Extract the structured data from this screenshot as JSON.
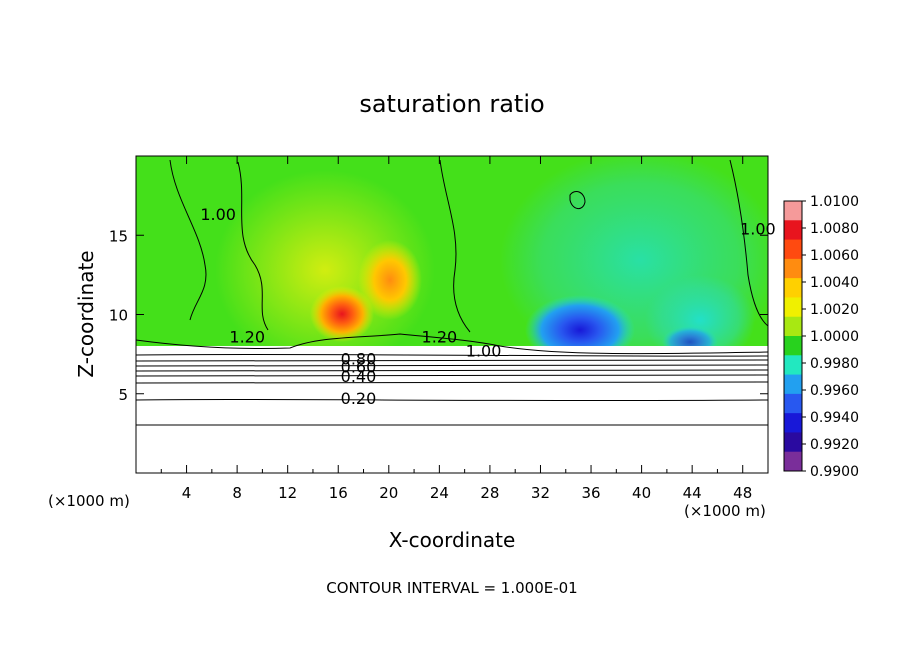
{
  "chart_data": {
    "type": "heatmap",
    "title": "saturation ratio",
    "xlabel": "X-coordinate",
    "ylabel": "Z-coordinate",
    "x_unit_left": "(×1000 m)",
    "x_unit_right": "(×1000 m)",
    "footer": "CONTOUR INTERVAL = 1.000E-01",
    "xlim": [
      0,
      50
    ],
    "ylim": [
      0,
      20
    ],
    "x_ticks": [
      4,
      8,
      12,
      16,
      20,
      24,
      28,
      32,
      36,
      40,
      44,
      48
    ],
    "y_ticks": [
      5,
      10,
      15
    ],
    "colorbar": {
      "levels": [
        "1.0100",
        "1.0080",
        "1.0060",
        "1.0040",
        "1.0020",
        "1.0000",
        "0.9980",
        "0.9960",
        "0.9940",
        "0.9920",
        "0.9900"
      ],
      "colors": [
        "#f59a9a",
        "#e8141e",
        "#ff4a10",
        "#ff8c10",
        "#ffd000",
        "#f0f000",
        "#a8e812",
        "#28d21e",
        "#22e8c0",
        "#22a0f0",
        "#2858f0",
        "#1818d8",
        "#2a0aa0",
        "#7a2e9a"
      ]
    },
    "contour_labels": [
      {
        "text": "0.20",
        "x": 17.6,
        "y": 4.6
      },
      {
        "text": "0.40",
        "x": 17.6,
        "y": 6.0
      },
      {
        "text": "0.60",
        "x": 17.6,
        "y": 6.6
      },
      {
        "text": "0.80",
        "x": 17.6,
        "y": 7.1
      },
      {
        "text": "1.20",
        "x": 8.8,
        "y": 8.5
      },
      {
        "text": "1.20",
        "x": 24.0,
        "y": 8.5
      },
      {
        "text": "1.00",
        "x": 27.5,
        "y": 7.6
      },
      {
        "text": "1.00",
        "x": 6.5,
        "y": 16.2
      },
      {
        "text": "1.00",
        "x": 49.2,
        "y": 15.3
      }
    ]
  }
}
